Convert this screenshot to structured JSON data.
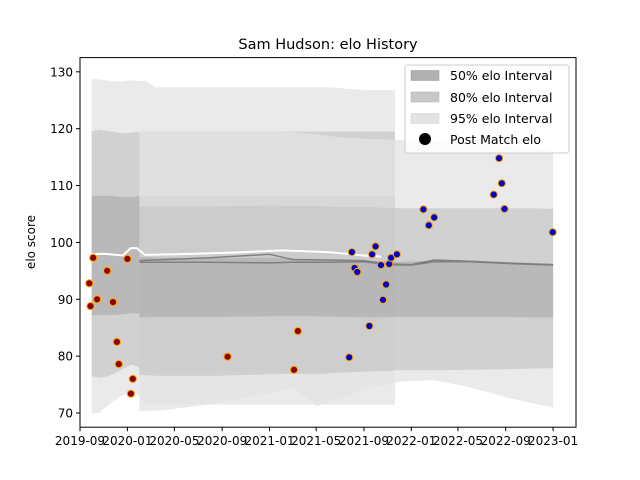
{
  "chart_data": {
    "type": "scatter",
    "title": "Sam Hudson: elo History",
    "xlabel": "",
    "ylabel": "elo score",
    "xlim": [
      "2019-09-01",
      "2023-03-01"
    ],
    "ylim": [
      67.5,
      132.5
    ],
    "x_ticks": [
      "2019-09",
      "2020-01",
      "2020-05",
      "2020-09",
      "2021-01",
      "2021-05",
      "2021-09",
      "2022-01",
      "2022-05",
      "2022-09",
      "2023-01"
    ],
    "y_ticks": [
      70,
      80,
      90,
      100,
      110,
      120,
      130
    ],
    "grid": false,
    "legend_position": "top-right",
    "legend": [
      {
        "label": "50% elo Interval",
        "kind": "patch",
        "color": "#b0b0b0"
      },
      {
        "label": "80% elo Interval",
        "kind": "patch",
        "color": "#c8c8c8"
      },
      {
        "label": "95% elo Interval",
        "kind": "patch",
        "color": "#e3e3e3"
      },
      {
        "label": "Post Match elo",
        "kind": "marker",
        "color": "#000000"
      }
    ],
    "colors": {
      "band50": "#b0b0b0",
      "band80": "#c8c8c8",
      "band95": "#e3e3e3",
      "mean_line": "#808080",
      "early_point_fill": "#8b0000",
      "late_point_fill": "#0000cc",
      "point_edge": "#ffa500"
    },
    "bands_early": {
      "x": [
        "2019-10-01",
        "2019-10-20",
        "2019-11-15",
        "2019-12-15",
        "2020-01-10",
        "2020-01-25",
        "2020-02-15",
        "2020-03-15",
        "2020-06-01",
        "2020-09-01",
        "2021-01-01",
        "2021-03-20",
        "2021-06-01",
        "2021-09-01",
        "2021-11-20"
      ],
      "p95": [
        [
          70,
          128.7
        ],
        [
          70,
          128.7
        ],
        [
          71.5,
          128.4
        ],
        [
          73,
          128.3
        ],
        [
          73.5,
          128.5
        ],
        [
          73.5,
          128.4
        ],
        [
          71.5,
          128.4
        ],
        [
          71.5,
          127.3
        ],
        [
          71.5,
          127.3
        ],
        [
          71.5,
          127.3
        ],
        [
          71.5,
          127.3
        ],
        [
          71.5,
          127.3
        ],
        [
          71.5,
          127.3
        ],
        [
          71.5,
          126.8
        ],
        [
          71.5,
          126.8
        ]
      ],
      "p80": [
        [
          76.5,
          119.5
        ],
        [
          76.2,
          119.8
        ],
        [
          76.5,
          119.6
        ],
        [
          77.5,
          119.2
        ],
        [
          78.5,
          119.3
        ],
        [
          78.2,
          119.4
        ],
        [
          77.3,
          119.5
        ],
        [
          77.3,
          119.5
        ],
        [
          77.3,
          119.5
        ],
        [
          77.3,
          119.5
        ],
        [
          77.3,
          119.5
        ],
        [
          77.3,
          119.5
        ],
        [
          77.3,
          119.5
        ],
        [
          77.3,
          119.5
        ],
        [
          77.3,
          119.5
        ]
      ],
      "p50": [
        [
          87.2,
          108.2
        ],
        [
          87.2,
          108.2
        ],
        [
          87.2,
          108.2
        ],
        [
          87.3,
          108.0
        ],
        [
          87.5,
          108.0
        ],
        [
          87.5,
          108.1
        ],
        [
          87.3,
          108.1
        ],
        [
          87.3,
          108.1
        ],
        [
          87.3,
          108.1
        ],
        [
          87.3,
          108.1
        ],
        [
          87.3,
          108.1
        ],
        [
          87.3,
          108.1
        ],
        [
          87.3,
          108.1
        ],
        [
          87.3,
          108.1
        ],
        [
          87.3,
          108.1
        ]
      ]
    },
    "bands_late": {
      "x": [
        "2020-02-01",
        "2020-04-01",
        "2020-08-01",
        "2021-01-01",
        "2021-03-01",
        "2021-05-01",
        "2021-07-01",
        "2021-09-15",
        "2021-12-01",
        "2022-03-01",
        "2022-06-01",
        "2022-09-01",
        "2022-11-01",
        "2023-01-01"
      ],
      "p95": [
        [
          70.3,
          119.5
        ],
        [
          70.5,
          119.5
        ],
        [
          71.5,
          119.5
        ],
        [
          73.5,
          119.6
        ],
        [
          74.5,
          119.4
        ],
        [
          71.2,
          119.0
        ],
        [
          72.5,
          118.5
        ],
        [
          74.5,
          118.2
        ],
        [
          75.5,
          118.0
        ],
        [
          75.8,
          117.6
        ],
        [
          74.5,
          117.4
        ],
        [
          72.8,
          117.0
        ],
        [
          71.8,
          116.4
        ],
        [
          71.0,
          116.1
        ]
      ],
      "p80": [
        [
          76.7,
          106.3
        ],
        [
          76.5,
          106.3
        ],
        [
          76.5,
          106.3
        ],
        [
          76.8,
          106.5
        ],
        [
          76.9,
          106.4
        ],
        [
          76.8,
          106.4
        ],
        [
          77.1,
          106.2
        ],
        [
          77.3,
          106.2
        ],
        [
          77.5,
          106.0
        ],
        [
          77.5,
          106.0
        ],
        [
          77.6,
          106.0
        ],
        [
          77.7,
          106.0
        ],
        [
          77.8,
          106.0
        ],
        [
          77.9,
          105.9
        ]
      ],
      "p50": [
        [
          86.8,
          97.4
        ],
        [
          86.9,
          97.3
        ],
        [
          86.9,
          97.2
        ],
        [
          87.0,
          97.3
        ],
        [
          87.0,
          97.1
        ],
        [
          87.0,
          97.1
        ],
        [
          86.9,
          97.0
        ],
        [
          86.8,
          96.8
        ],
        [
          86.9,
          96.6
        ],
        [
          86.9,
          96.8
        ],
        [
          86.9,
          96.6
        ],
        [
          86.9,
          96.4
        ],
        [
          86.8,
          96.3
        ],
        [
          86.8,
          96.2
        ]
      ]
    },
    "white_line": {
      "x": [
        "2019-10-01",
        "2019-11-01",
        "2019-12-20",
        "2020-01-10",
        "2020-01-25",
        "2020-02-15",
        "2020-05-01",
        "2020-10-01",
        "2021-02-01",
        "2021-06-01",
        "2021-09-01",
        "2021-10-15"
      ],
      "y": [
        97.9,
        98.0,
        97.7,
        99.0,
        99.0,
        97.8,
        97.9,
        98.2,
        98.6,
        98.3,
        97.7,
        97.5
      ]
    },
    "mean_lines": [
      {
        "x": [
          "2020-02-01",
          "2020-08-01",
          "2021-01-01",
          "2021-03-01",
          "2021-06-01",
          "2021-09-01",
          "2021-11-01",
          "2022-01-01",
          "2022-03-01",
          "2022-06-01",
          "2022-09-01",
          "2023-01-01"
        ],
        "y": [
          96.5,
          96.5,
          96.4,
          96.5,
          96.5,
          96.6,
          96.1,
          96.0,
          96.6,
          96.6,
          96.3,
          96.0
        ]
      },
      {
        "x": [
          "2020-02-01",
          "2020-08-01",
          "2021-01-01",
          "2021-03-01",
          "2021-09-01",
          "2021-11-01",
          "2022-01-01",
          "2022-03-01",
          "2022-06-01",
          "2022-09-01",
          "2023-01-01"
        ],
        "y": [
          96.8,
          97.3,
          97.9,
          97.0,
          96.8,
          96.2,
          96.1,
          96.9,
          96.7,
          96.4,
          96.1
        ]
      }
    ],
    "points_early": {
      "x": [
        "2019-09-25",
        "2019-09-28",
        "2019-10-05",
        "2019-10-15",
        "2019-11-10",
        "2019-11-25",
        "2019-12-05",
        "2019-12-10",
        "2020-01-01",
        "2020-01-10",
        "2020-01-15",
        "2020-09-15",
        "2021-03-05",
        "2021-03-15"
      ],
      "y": [
        92.8,
        88.8,
        97.3,
        90.0,
        95.0,
        89.5,
        82.5,
        78.6,
        97.1,
        73.4,
        76.0,
        79.9,
        77.6,
        84.4
      ]
    },
    "points_late": {
      "x": [
        "2021-07-25",
        "2021-08-01",
        "2021-08-08",
        "2021-08-15",
        "2021-09-15",
        "2021-09-22",
        "2021-10-01",
        "2021-10-15",
        "2021-10-20",
        "2021-10-28",
        "2021-11-05",
        "2021-11-10",
        "2021-11-25",
        "2022-02-01",
        "2022-02-15",
        "2022-03-01",
        "2022-08-01",
        "2022-08-15",
        "2022-08-22",
        "2022-08-29",
        "2022-12-31"
      ],
      "y": [
        79.8,
        98.3,
        95.5,
        94.8,
        85.3,
        97.9,
        99.3,
        96.0,
        89.9,
        92.6,
        96.2,
        97.3,
        97.9,
        105.8,
        103.0,
        104.4,
        108.4,
        114.8,
        110.4,
        105.9,
        101.8
      ]
    }
  }
}
